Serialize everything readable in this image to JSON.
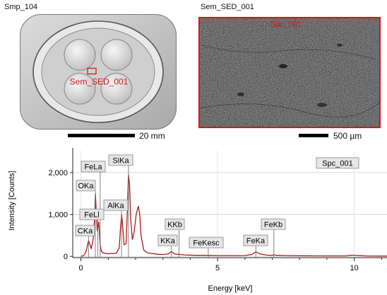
{
  "sample_panel": {
    "title": "Smp_104",
    "region_label": "Sem_SED_001",
    "scale_label": "20 mm",
    "accent_color": "#d01818"
  },
  "image_panel": {
    "title": "Sem_SED_001",
    "spot_label": "Spc_001",
    "scale_label": "500 µm"
  },
  "chart_data": {
    "type": "line",
    "title": "",
    "xlabel": "Energy [keV]",
    "ylabel": "Intensity [Counts]",
    "xlim": [
      -0.3,
      11.2
    ],
    "ylim": [
      -30,
      2520
    ],
    "xticks": [
      0,
      5,
      10
    ],
    "yticks": [
      0,
      1000,
      2000
    ],
    "ytick_labels": [
      "0",
      "1,000",
      "2,000"
    ],
    "grid": true,
    "legend": "top-right",
    "series": [
      {
        "name": "Spc_001",
        "color": "#b01818",
        "x": [
          0.0,
          0.1,
          0.18,
          0.25,
          0.28,
          0.32,
          0.38,
          0.45,
          0.5,
          0.53,
          0.56,
          0.6,
          0.65,
          0.7,
          0.75,
          0.8,
          0.9,
          1.0,
          1.1,
          1.2,
          1.3,
          1.4,
          1.45,
          1.49,
          1.53,
          1.58,
          1.65,
          1.7,
          1.74,
          1.78,
          1.82,
          1.88,
          1.95,
          2.02,
          2.1,
          2.15,
          2.2,
          2.3,
          2.45,
          2.6,
          2.8,
          3.0,
          3.2,
          3.31,
          3.42,
          3.55,
          3.8,
          4.2,
          4.6,
          5.0,
          5.5,
          6.0,
          6.25,
          6.4,
          6.55,
          6.8,
          7.0,
          7.06,
          7.15,
          7.5,
          8.0,
          9.0,
          9.7,
          9.9,
          10.5,
          11.2
        ],
        "y": [
          0,
          20,
          100,
          300,
          380,
          300,
          180,
          420,
          900,
          1500,
          1050,
          600,
          820,
          300,
          120,
          90,
          70,
          65,
          70,
          70,
          80,
          200,
          700,
          1000,
          700,
          280,
          300,
          1100,
          1950,
          1700,
          900,
          400,
          600,
          1000,
          1200,
          1000,
          500,
          150,
          80,
          70,
          50,
          45,
          60,
          120,
          60,
          50,
          35,
          25,
          25,
          20,
          20,
          22,
          45,
          110,
          60,
          30,
          25,
          40,
          25,
          20,
          15,
          12,
          12,
          30,
          10,
          8
        ]
      }
    ],
    "annotations": [
      {
        "label": "FeLa",
        "x": 0.705
      },
      {
        "label": "OKa",
        "x": 0.525
      },
      {
        "label": "FeLl",
        "x": 0.615
      },
      {
        "label": "CKa",
        "x": 0.277
      },
      {
        "label": "SiKa",
        "x": 1.74
      },
      {
        "label": "AlKa",
        "x": 1.486
      },
      {
        "label": "KKb",
        "x": 3.59
      },
      {
        "label": "KKa",
        "x": 3.313
      },
      {
        "label": "FeKesc",
        "x": 4.66
      },
      {
        "label": "FeKa",
        "x": 6.4
      },
      {
        "label": "FeKb",
        "x": 7.06
      }
    ]
  }
}
